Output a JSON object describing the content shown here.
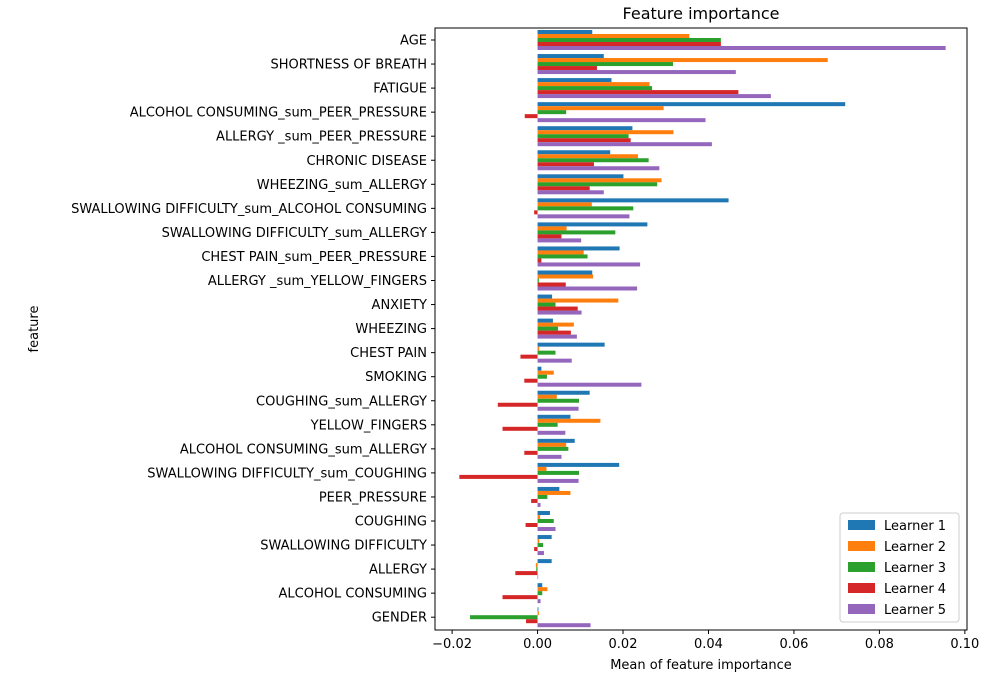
{
  "chart_data": {
    "type": "bar",
    "orientation": "horizontal",
    "title": "Feature importance",
    "xlabel": "Mean of feature importance",
    "ylabel": "feature",
    "xlim": [
      -0.024,
      0.1005
    ],
    "xticks": [
      -0.02,
      0.0,
      0.02,
      0.04,
      0.06,
      0.08,
      0.1
    ],
    "xtick_labels": [
      "−0.02",
      "0.00",
      "0.02",
      "0.04",
      "0.06",
      "0.08",
      "0.10"
    ],
    "grid": false,
    "legend_position": "lower-right",
    "categories": [
      "AGE",
      "SHORTNESS OF BREATH",
      "FATIGUE ",
      "ALCOHOL CONSUMING_sum_PEER_PRESSURE",
      "ALLERGY _sum_PEER_PRESSURE",
      "CHRONIC DISEASE",
      "WHEEZING_sum_ALLERGY ",
      "SWALLOWING DIFFICULTY_sum_ALCOHOL CONSUMING",
      "SWALLOWING DIFFICULTY_sum_ALLERGY ",
      "CHEST PAIN_sum_PEER_PRESSURE",
      "ALLERGY _sum_YELLOW_FINGERS",
      "ANXIETY",
      "WHEEZING",
      "CHEST PAIN",
      "SMOKING",
      "COUGHING_sum_ALLERGY ",
      "YELLOW_FINGERS",
      "ALCOHOL CONSUMING_sum_ALLERGY ",
      "SWALLOWING DIFFICULTY_sum_COUGHING",
      "PEER_PRESSURE",
      "COUGHING",
      "SWALLOWING DIFFICULTY",
      "ALLERGY ",
      "ALCOHOL CONSUMING",
      "GENDER"
    ],
    "series": [
      {
        "name": "Learner 1",
        "color": "#1f77b4",
        "values": [
          0.0128,
          0.0155,
          0.0173,
          0.072,
          0.0222,
          0.017,
          0.0201,
          0.0447,
          0.0257,
          0.0192,
          0.0128,
          0.0034,
          0.0036,
          0.0157,
          0.0009,
          0.0122,
          0.0077,
          0.0087,
          0.0191,
          0.0051,
          0.0029,
          0.0033,
          0.0033,
          0.0011,
          0.0002
        ]
      },
      {
        "name": "Learner 2",
        "color": "#ff7f0e",
        "values": [
          0.0355,
          0.0679,
          0.0262,
          0.0295,
          0.0318,
          0.0235,
          0.029,
          0.0127,
          0.0068,
          0.0108,
          0.013,
          0.0189,
          0.0085,
          0.0004,
          0.0038,
          0.0045,
          0.0147,
          0.0067,
          0.0021,
          0.0077,
          0.0006,
          0.0004,
          -0.0004,
          0.0023,
          0.0003
        ]
      },
      {
        "name": "Learner 3",
        "color": "#2ca02c",
        "values": [
          0.0429,
          0.0317,
          0.0268,
          0.0067,
          0.0213,
          0.026,
          0.028,
          0.0224,
          0.0182,
          0.0117,
          0.0003,
          0.0042,
          0.0048,
          0.0042,
          0.0022,
          0.0097,
          0.0047,
          0.0072,
          0.0097,
          0.0023,
          0.0038,
          0.0013,
          -0.0003,
          0.0011,
          -0.0158
        ]
      },
      {
        "name": "Learner 4",
        "color": "#d62728",
        "values": [
          0.0429,
          0.0139,
          0.047,
          -0.003,
          0.0218,
          0.0132,
          0.0122,
          -0.0008,
          0.0056,
          0.0009,
          0.0066,
          0.0094,
          0.0078,
          -0.004,
          -0.0031,
          -0.0093,
          -0.0082,
          -0.0031,
          -0.0183,
          -0.0015,
          -0.0028,
          -0.0008,
          -0.0052,
          -0.0082,
          -0.0027
        ]
      },
      {
        "name": "Learner 5",
        "color": "#9467bd",
        "values": [
          0.0955,
          0.0464,
          0.0546,
          0.0393,
          0.0408,
          0.0285,
          0.0155,
          0.0215,
          0.0102,
          0.024,
          0.0233,
          0.0103,
          0.0092,
          0.008,
          0.0243,
          0.0096,
          0.0065,
          0.0056,
          0.0096,
          0.0007,
          0.0042,
          0.0015,
          0.0001,
          0.0007,
          0.0124
        ]
      }
    ]
  }
}
